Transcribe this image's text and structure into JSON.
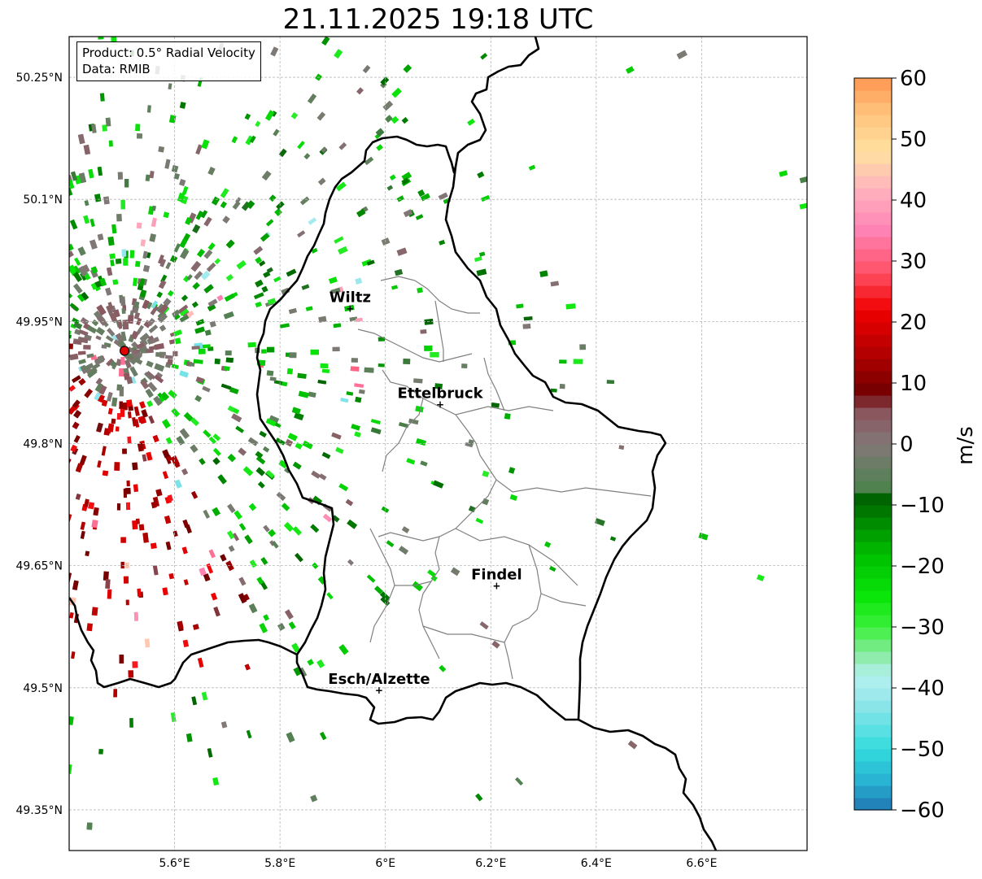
{
  "title": "21.11.2025 19:18 UTC",
  "info": {
    "product": "Product: 0.5° Radial Velocity",
    "source": "Data: RMIB"
  },
  "map": {
    "lon_range": [
      5.4,
      6.8
    ],
    "lat_range": [
      49.3,
      50.3
    ],
    "x_ticks": [
      {
        "value": 5.6,
        "label": "5.6°E"
      },
      {
        "value": 5.8,
        "label": "5.8°E"
      },
      {
        "value": 6.0,
        "label": "6°E"
      },
      {
        "value": 6.2,
        "label": "6.2°E"
      },
      {
        "value": 6.4,
        "label": "6.4°E"
      },
      {
        "value": 6.6,
        "label": "6.6°E"
      }
    ],
    "y_ticks": [
      {
        "value": 50.25,
        "label": "50.25°N"
      },
      {
        "value": 50.1,
        "label": "50.1°N"
      },
      {
        "value": 49.95,
        "label": "49.95°N"
      },
      {
        "value": 49.8,
        "label": "49.8°N"
      },
      {
        "value": 49.65,
        "label": "49.65°N"
      },
      {
        "value": 49.5,
        "label": "49.5°N"
      },
      {
        "value": 49.35,
        "label": "49.35°N"
      }
    ],
    "radar_site": {
      "lon": 5.505,
      "lat": 49.914
    },
    "cities": [
      {
        "name": "Wiltz",
        "lon": 5.933,
        "lat": 49.966
      },
      {
        "name": "Ettelbruck",
        "lon": 6.104,
        "lat": 49.848
      },
      {
        "name": "Findel",
        "lon": 6.211,
        "lat": 49.625
      },
      {
        "name": "Esch/Alzette",
        "lon": 5.988,
        "lat": 49.497
      }
    ]
  },
  "colorbar": {
    "label": "m/s",
    "range": [
      -60,
      60
    ],
    "ticks": [
      {
        "value": 60,
        "label": "60"
      },
      {
        "value": 50,
        "label": "50"
      },
      {
        "value": 40,
        "label": "40"
      },
      {
        "value": 30,
        "label": "30"
      },
      {
        "value": 20,
        "label": "20"
      },
      {
        "value": 10,
        "label": "10"
      },
      {
        "value": 0,
        "label": "0"
      },
      {
        "value": -10,
        "label": "−10"
      },
      {
        "value": -20,
        "label": "−20"
      },
      {
        "value": -30,
        "label": "−30"
      },
      {
        "value": -40,
        "label": "−40"
      },
      {
        "value": -50,
        "label": "−50"
      },
      {
        "value": -60,
        "label": "−60"
      }
    ]
  },
  "colors": {
    "border": "#000000",
    "canton_border": "#808080",
    "grid": "#b0b0b0",
    "radar_marker": "#e00000"
  }
}
